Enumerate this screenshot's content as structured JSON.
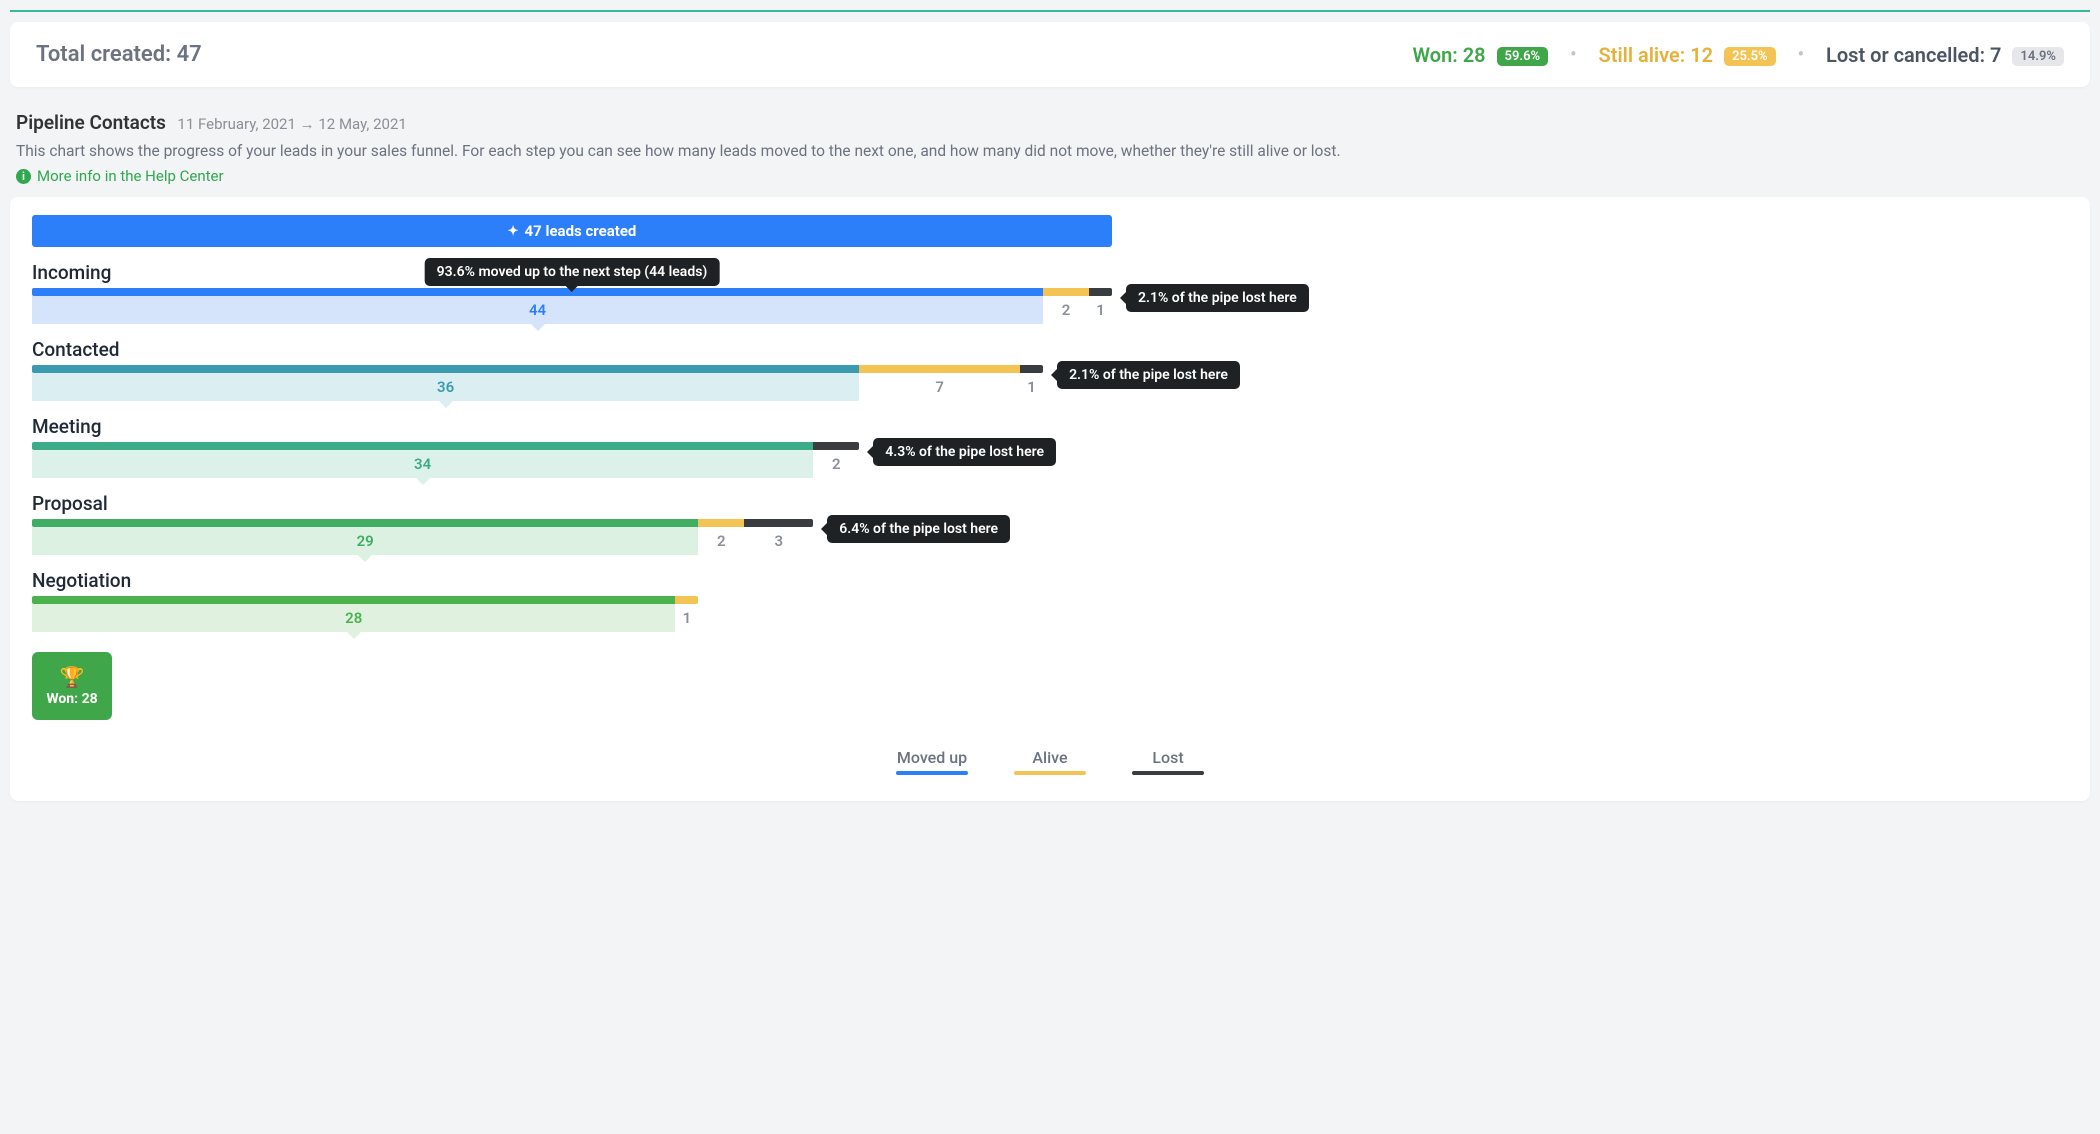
{
  "colors": {
    "brand_blue": "#2d7ff9",
    "won_green": "#3fa64a",
    "alive_yellow": "#f3c453",
    "lost_dark": "#3a3d40",
    "text_grey": "#6b7280",
    "bg": "#f3f4f5"
  },
  "summary": {
    "total_label": "Total created:",
    "total_value": "47",
    "won_label": "Won:",
    "won_value": "28",
    "won_pct": "59.6%",
    "alive_label": "Still alive:",
    "alive_value": "12",
    "alive_pct": "25.5%",
    "lost_label": "Lost or cancelled:",
    "lost_value": "7",
    "lost_pct": "14.9%"
  },
  "header": {
    "title": "Pipeline Contacts",
    "date_from": "11 February, 2021",
    "date_to": "12 May, 2021",
    "description": "This chart shows the progress of your leads in your sales funnel. For each step you can see how many leads moved to the next one, and how many did not move, whether they're still alive or lost.",
    "help_link": "More info in the Help Center"
  },
  "funnel": {
    "top_label": "47 leads created",
    "top_total": 47,
    "max_width_units": 47,
    "moved_tooltip": "93.6% moved up to the next step (44 leads)",
    "stages": [
      {
        "name": "Incoming",
        "moved": 44,
        "alive": 2,
        "lost": 1,
        "bar_color": "#2d7ff9",
        "body_color": "#d6e4fb",
        "text_color": "#2d7ff9",
        "lost_tooltip": "2.1% of the pipe lost here",
        "show_moved_tooltip": true
      },
      {
        "name": "Contacted",
        "moved": 36,
        "alive": 7,
        "lost": 1,
        "bar_color": "#3a9bb0",
        "body_color": "#dbeef2",
        "text_color": "#3a9bb0",
        "lost_tooltip": "2.1% of the pipe lost here"
      },
      {
        "name": "Meeting",
        "moved": 34,
        "alive": 0,
        "lost": 2,
        "bar_color": "#3bab88",
        "body_color": "#dcf1ea",
        "text_color": "#3bab88",
        "lost_tooltip": "4.3% of the pipe lost here"
      },
      {
        "name": "Proposal",
        "moved": 29,
        "alive": 2,
        "lost": 3,
        "bar_color": "#3fae63",
        "body_color": "#ddf1e3",
        "text_color": "#3fae63",
        "lost_tooltip": "6.4% of the pipe lost here"
      },
      {
        "name": "Negotiation",
        "moved": 28,
        "alive": 1,
        "lost": 0,
        "bar_color": "#4bb24e",
        "body_color": "#e0f2df",
        "text_color": "#4bb24e",
        "lost_tooltip": ""
      }
    ],
    "won_label": "Won: 28"
  },
  "legend": {
    "moved": {
      "label": "Moved up",
      "color": "#2d7ff9"
    },
    "alive": {
      "label": "Alive",
      "color": "#f3c453"
    },
    "lost": {
      "label": "Lost",
      "color": "#3a3d40"
    }
  }
}
